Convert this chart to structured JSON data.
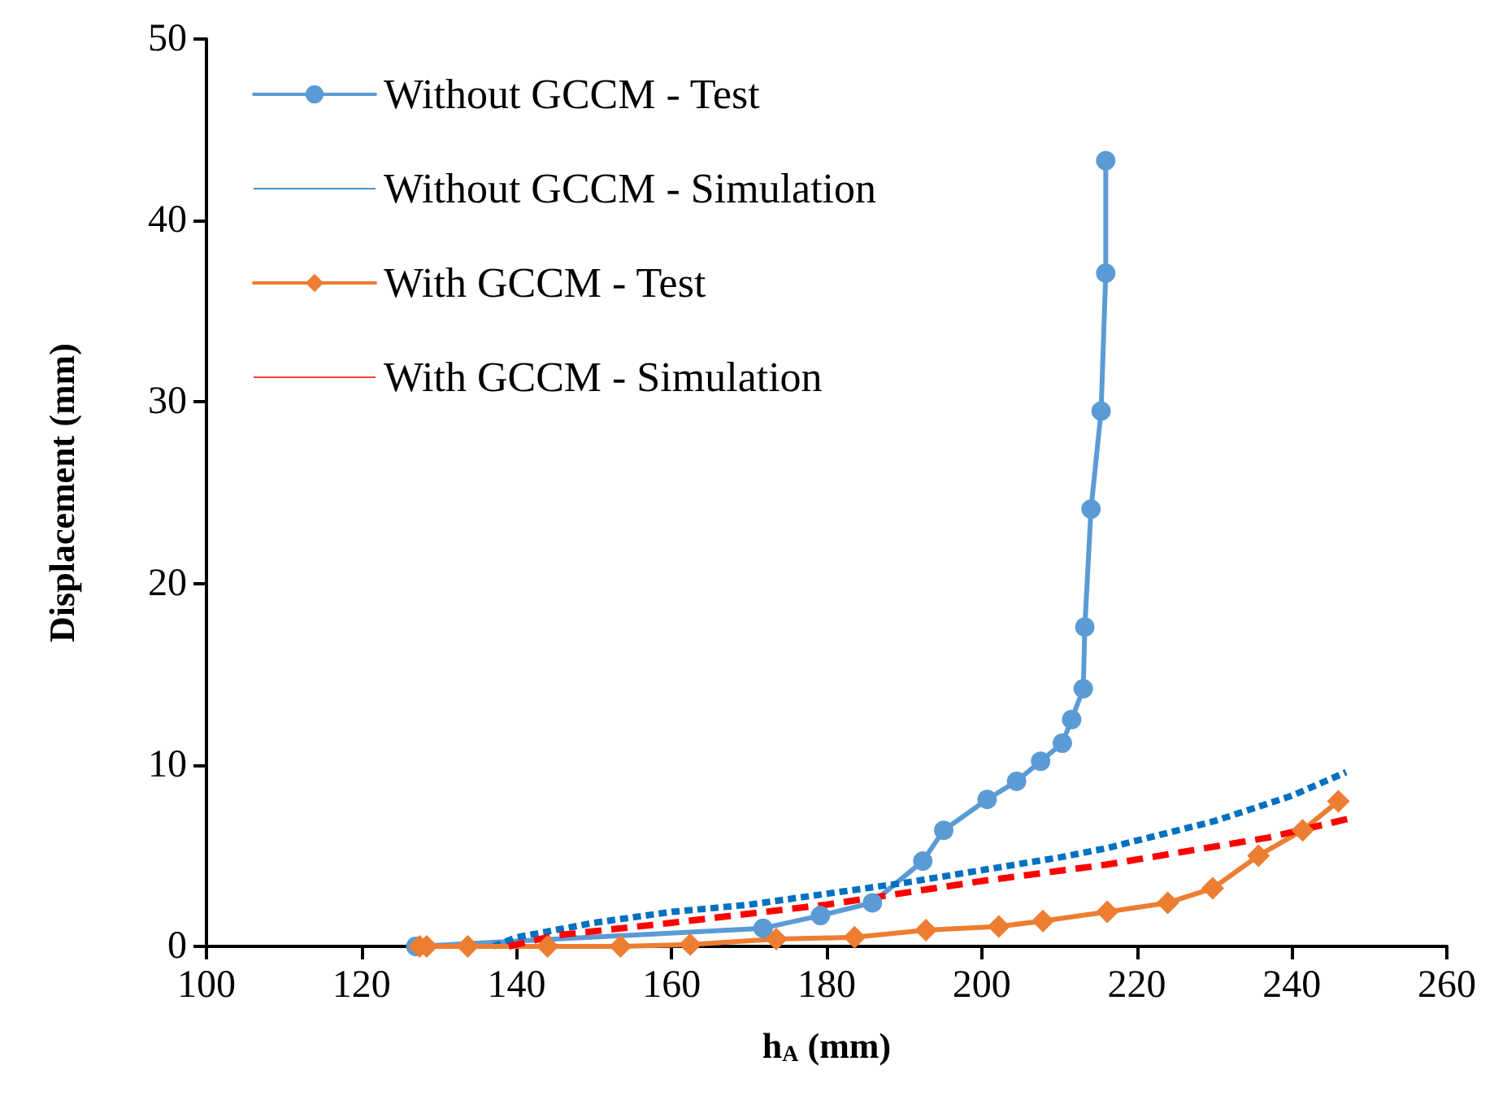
{
  "chart_data": {
    "type": "line",
    "xlabel": "h$_{A}$ (mm)",
    "ylabel": "Displacement (mm)",
    "xlim": [
      100,
      260
    ],
    "xticks": [
      100,
      120,
      140,
      160,
      180,
      200,
      220,
      240,
      260
    ],
    "ylim": [
      0,
      50
    ],
    "yticks": [
      0,
      10,
      20,
      30,
      40,
      50
    ],
    "grid": false,
    "legend": "top left",
    "series": [
      {
        "name": "Without GCCM - Test",
        "color": "#5b9bd5",
        "marker": "circle",
        "line_style": "solid",
        "x": [
          127,
          171.8,
          179.2,
          185.9,
          192.4,
          195.1,
          200.7,
          204.5,
          207.6,
          210.4,
          211.6,
          213.1,
          213.3,
          214.1,
          215.4,
          216.0,
          216.0
        ],
        "values": [
          0,
          1.0,
          1.7,
          2.4,
          4.7,
          6.4,
          8.1,
          9.1,
          10.2,
          11.2,
          12.5,
          14.2,
          17.6,
          24.1,
          29.5,
          37.1,
          43.3
        ]
      },
      {
        "name": "Without GCCM - Simulation",
        "color": "#0070c0",
        "marker": "none",
        "line_style": "dotted",
        "x": [
          137,
          140,
          150,
          160,
          170,
          180,
          190,
          200,
          210,
          216,
          230,
          240,
          247
        ],
        "values": [
          0,
          0.5,
          1.3,
          1.9,
          2.3,
          2.9,
          3.5,
          4.2,
          4.9,
          5.4,
          6.9,
          8.3,
          9.6
        ]
      },
      {
        "name": "With GCCM - Test",
        "color": "#ed7d31",
        "marker": "diamond",
        "line_style": "solid",
        "x": [
          127.5,
          128.4,
          133.7,
          144,
          153.4,
          162.4,
          173.5,
          183.6,
          192.8,
          202.2,
          207.9,
          216.2,
          224,
          229.8,
          235.7,
          241.4,
          246
        ],
        "values": [
          0,
          0,
          0,
          0,
          0,
          0.1,
          0.4,
          0.5,
          0.9,
          1.1,
          1.4,
          1.9,
          2.4,
          3.2,
          5.0,
          6.4,
          8.0
        ]
      },
      {
        "name": "With GCCM - Simulation",
        "color": "#ff0000",
        "marker": "none",
        "line_style": "dashed",
        "x": [
          139,
          145,
          160,
          180,
          200,
          216,
          237,
          248
        ],
        "values": [
          0,
          0.6,
          1.3,
          2.3,
          3.6,
          4.5,
          6.0,
          7.1
        ]
      }
    ]
  }
}
